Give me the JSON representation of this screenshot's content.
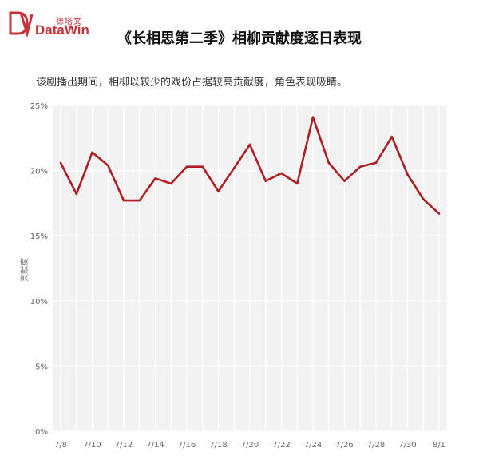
{
  "brand": {
    "cn": "德塔文",
    "en": "DataWin",
    "mark_color": "#c8323a"
  },
  "title": "《长相思第二季》相柳贡献度逐日表现",
  "subtitle": "该剧播出期间，相柳以较少的戏份占据较高贡献度，角色表现吸睛。",
  "chart_data": {
    "type": "line",
    "ylabel": "贡献度",
    "ylim": [
      0,
      25
    ],
    "yticks": [
      0,
      5,
      10,
      15,
      20,
      25
    ],
    "ytick_labels": [
      "0%",
      "5%",
      "10%",
      "15%",
      "20%",
      "25%"
    ],
    "x": [
      "7/8",
      "7/9",
      "7/10",
      "7/11",
      "7/12",
      "7/13",
      "7/14",
      "7/15",
      "7/16",
      "7/17",
      "7/18",
      "7/19",
      "7/20",
      "7/21",
      "7/22",
      "7/23",
      "7/24",
      "7/25",
      "7/26",
      "7/27",
      "7/28",
      "7/29",
      "7/30",
      "7/31",
      "8/1"
    ],
    "xtick_labels": [
      "7/8",
      "7/10",
      "7/12",
      "7/14",
      "7/16",
      "7/18",
      "7/20",
      "7/22",
      "7/24",
      "7/26",
      "7/28",
      "7/30",
      "8/1"
    ],
    "series": [
      {
        "color": "#b01e24",
        "values": [
          20.6,
          18.2,
          21.4,
          20.4,
          17.7,
          17.7,
          19.4,
          19.0,
          20.3,
          20.3,
          18.4,
          20.2,
          22.0,
          19.2,
          19.8,
          19.0,
          24.1,
          20.6,
          19.2,
          20.3,
          20.6,
          22.6,
          19.7,
          17.8,
          16.7
        ]
      }
    ],
    "grid": true
  }
}
